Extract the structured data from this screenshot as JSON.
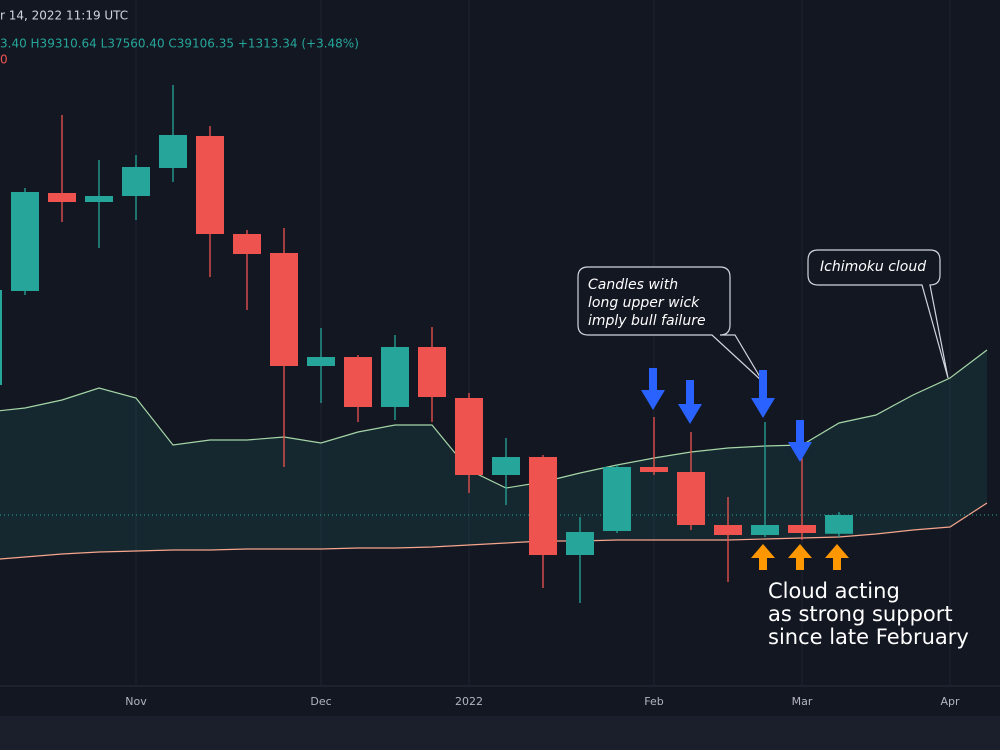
{
  "chart_data": {
    "type": "candlestick",
    "header": [
      "r 14, 2022 11:19 UTC",
      "3.40 H39310.64 L37560.40 C39106.35 +1313.34 (+3.48%)",
      "0"
    ],
    "categories": [
      null,
      null,
      null,
      null,
      "Nov",
      null,
      null,
      null,
      null,
      "Dec",
      null,
      null,
      null,
      "2022",
      null,
      null,
      null,
      null,
      "Feb",
      null,
      null,
      null,
      "Mar",
      null,
      null,
      null,
      "Apr",
      null
    ],
    "open": [
      48206,
      54786,
      61646,
      61016,
      61436,
      63396,
      65636,
      58776,
      57446,
      49536,
      50166,
      46666,
      50866,
      47296,
      41906,
      43166,
      36306,
      37986,
      42466,
      42116,
      38406,
      37706,
      38406,
      37793,
      null,
      null,
      null,
      null
    ],
    "high": [
      55206,
      61996,
      67106,
      63956,
      64306,
      69206,
      66336,
      59056,
      59196,
      52196,
      50306,
      51706,
      52266,
      47646,
      44496,
      43306,
      38966,
      42606,
      45966,
      44916,
      40366,
      45616,
      43096,
      39310.64,
      null,
      null,
      null,
      null
    ],
    "low": [
      47856,
      54506,
      59616,
      57796,
      59756,
      62416,
      55766,
      53456,
      42466,
      46946,
      45616,
      45756,
      45616,
      40646,
      39806,
      33996,
      32946,
      37846,
      41906,
      38056,
      34416,
      37566,
      37356,
      37560.4,
      null,
      null,
      null,
      null
    ],
    "close": [
      54856,
      61716,
      61016,
      61436,
      63466,
      65706,
      58776,
      57376,
      49536,
      50166,
      46666,
      50866,
      47366,
      41906,
      43166,
      36306,
      37916,
      42466,
      42116,
      38406,
      37706,
      38406,
      37846,
      39106.35,
      null,
      null,
      null,
      null
    ],
    "cloud_upper": [
      46316,
      46596,
      47156,
      47996,
      47296,
      44006,
      44356,
      44356,
      44566,
      44146,
      44916,
      45406,
      45406,
      42256,
      40996,
      41416,
      42046,
      42606,
      43096,
      43516,
      43796,
      43936,
      44006,
      45546,
      46106,
      47506,
      48696,
      50656
    ],
    "cloud_lower": [
      35956,
      36166,
      36376,
      36516,
      36586,
      36656,
      36656,
      36726,
      36726,
      36726,
      36796,
      36796,
      36866,
      37006,
      37146,
      37286,
      37286,
      37356,
      37356,
      37356,
      37356,
      37426,
      37496,
      37566,
      37776,
      38056,
      38266,
      39946
    ],
    "up_color": "#26a69a",
    "down_color": "#ef5350",
    "cloud_upper_color": "#a5d6a7",
    "cloud_lower_color": "#f7a58c",
    "cloud_fill": "#26a69a",
    "ylim": [
      25456,
      75156
    ],
    "annotations": {
      "wick_note": [
        "Candles with",
        "long upper wick",
        "imply bull failure"
      ],
      "cloud_note": "Ichimoku cloud",
      "support_note": [
        "Cloud acting",
        "as strong support",
        "since late February"
      ]
    }
  }
}
